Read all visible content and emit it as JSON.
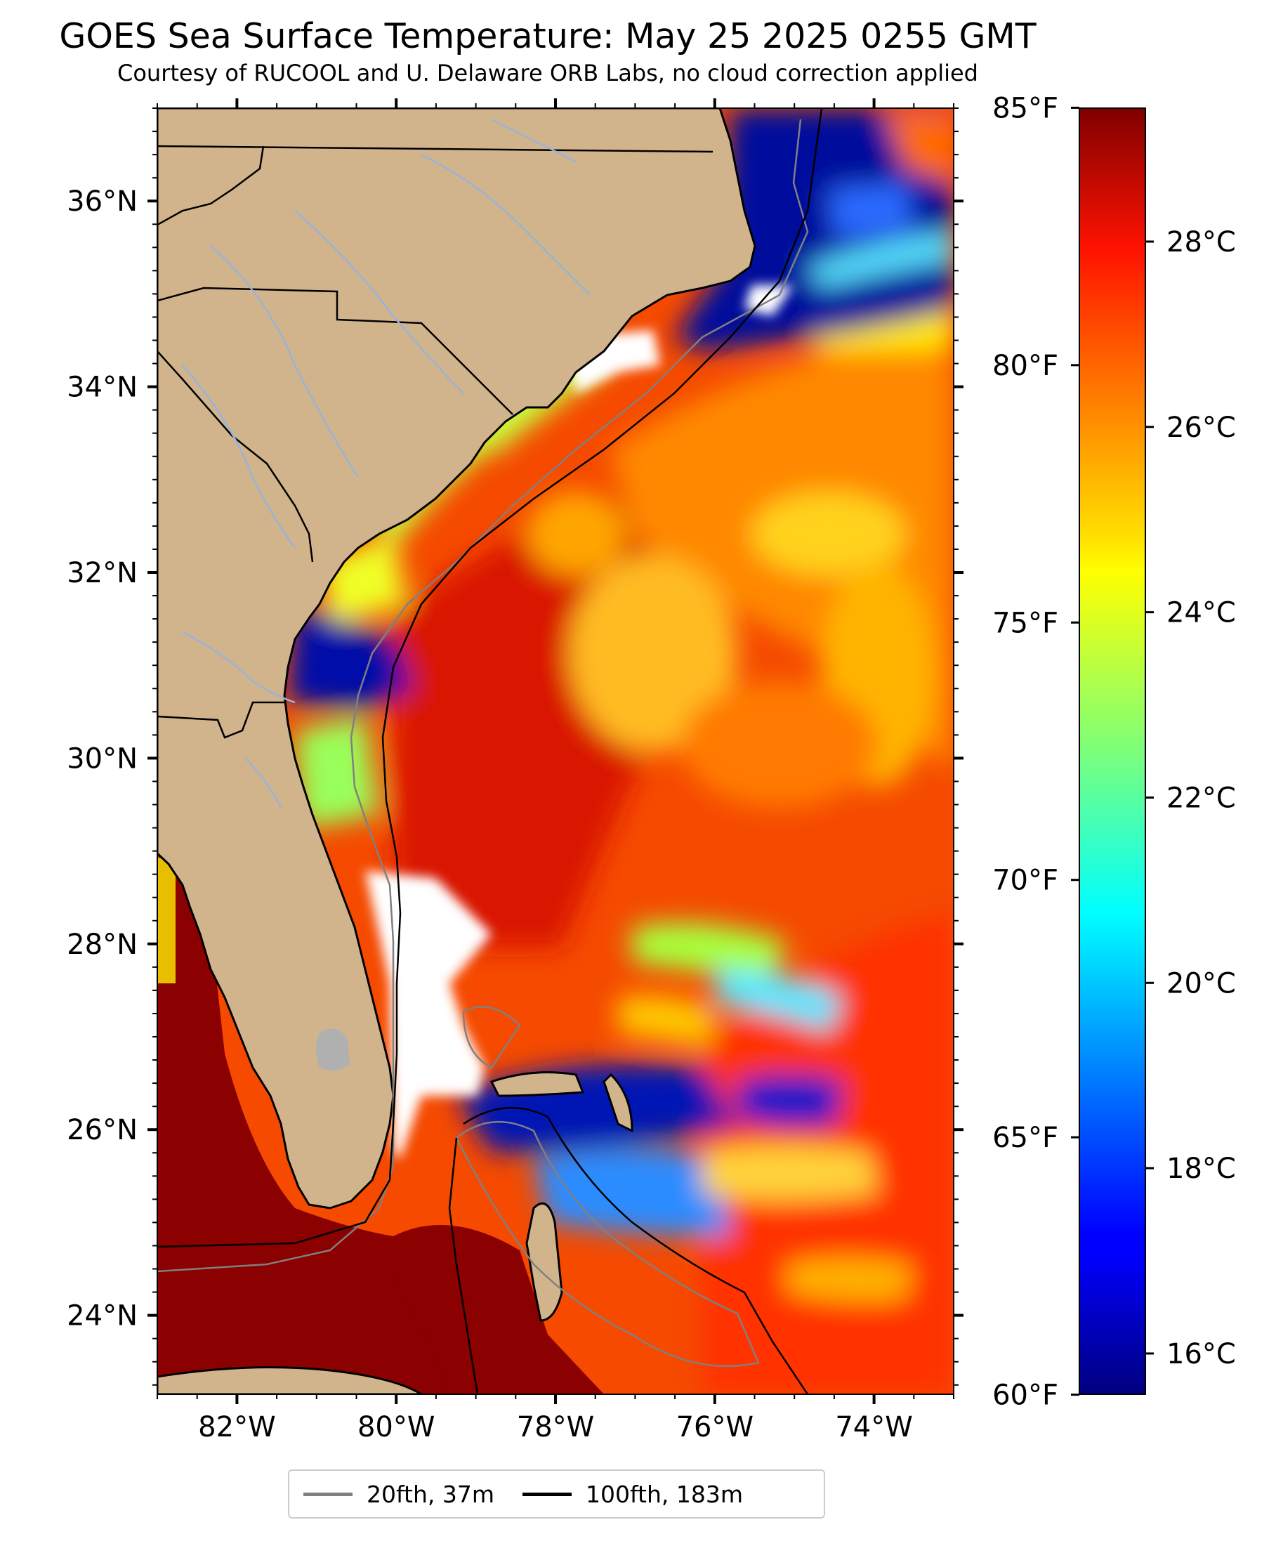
{
  "title": "GOES Sea Surface Temperature: May 25 2025 0255 GMT",
  "subtitle": "Courtesy of RUCOOL and U. Delaware ORB Labs, no cloud correction applied",
  "map": {
    "projection": "PlateCarree",
    "extent": {
      "lon_min": -83,
      "lon_max": -73,
      "lat_min": 23.15,
      "lat_max": 37.0
    },
    "lon_ticks": [
      {
        "value": -82,
        "label": "82°W"
      },
      {
        "value": -80,
        "label": "80°W"
      },
      {
        "value": -78,
        "label": "78°W"
      },
      {
        "value": -76,
        "label": "76°W"
      },
      {
        "value": -74,
        "label": "74°W"
      }
    ],
    "lat_ticks": [
      {
        "value": 24,
        "label": "24°N"
      },
      {
        "value": 26,
        "label": "26°N"
      },
      {
        "value": 28,
        "label": "28°N"
      },
      {
        "value": 30,
        "label": "30°N"
      },
      {
        "value": 32,
        "label": "32°N"
      },
      {
        "value": 34,
        "label": "34°N"
      },
      {
        "value": 36,
        "label": "36°N"
      }
    ],
    "colors": {
      "land": "#d2b48c",
      "rivers": "#99b3d9",
      "borders": "#000000",
      "no_data": "#ffffff",
      "lake": "#b0b0b0"
    }
  },
  "colorbar": {
    "colormap": "jet",
    "celsius_min": 15.56,
    "celsius_max": 29.44,
    "celsius_ticks": [
      {
        "value": 16,
        "label": "16°C"
      },
      {
        "value": 18,
        "label": "18°C"
      },
      {
        "value": 20,
        "label": "20°C"
      },
      {
        "value": 22,
        "label": "22°C"
      },
      {
        "value": 24,
        "label": "24°C"
      },
      {
        "value": 26,
        "label": "26°C"
      },
      {
        "value": 28,
        "label": "28°C"
      }
    ],
    "fahrenheit_ticks": [
      {
        "value": 60,
        "label": "60°F"
      },
      {
        "value": 65,
        "label": "65°F"
      },
      {
        "value": 70,
        "label": "70°F"
      },
      {
        "value": 75,
        "label": "75°F"
      },
      {
        "value": 80,
        "label": "80°F"
      },
      {
        "value": 85,
        "label": "85°F"
      }
    ]
  },
  "legend": {
    "placement": "bottom-center",
    "entries": [
      {
        "label": "20fth, 37m",
        "color": "#808080"
      },
      {
        "label": "100fth, 183m",
        "color": "#000000"
      }
    ]
  }
}
